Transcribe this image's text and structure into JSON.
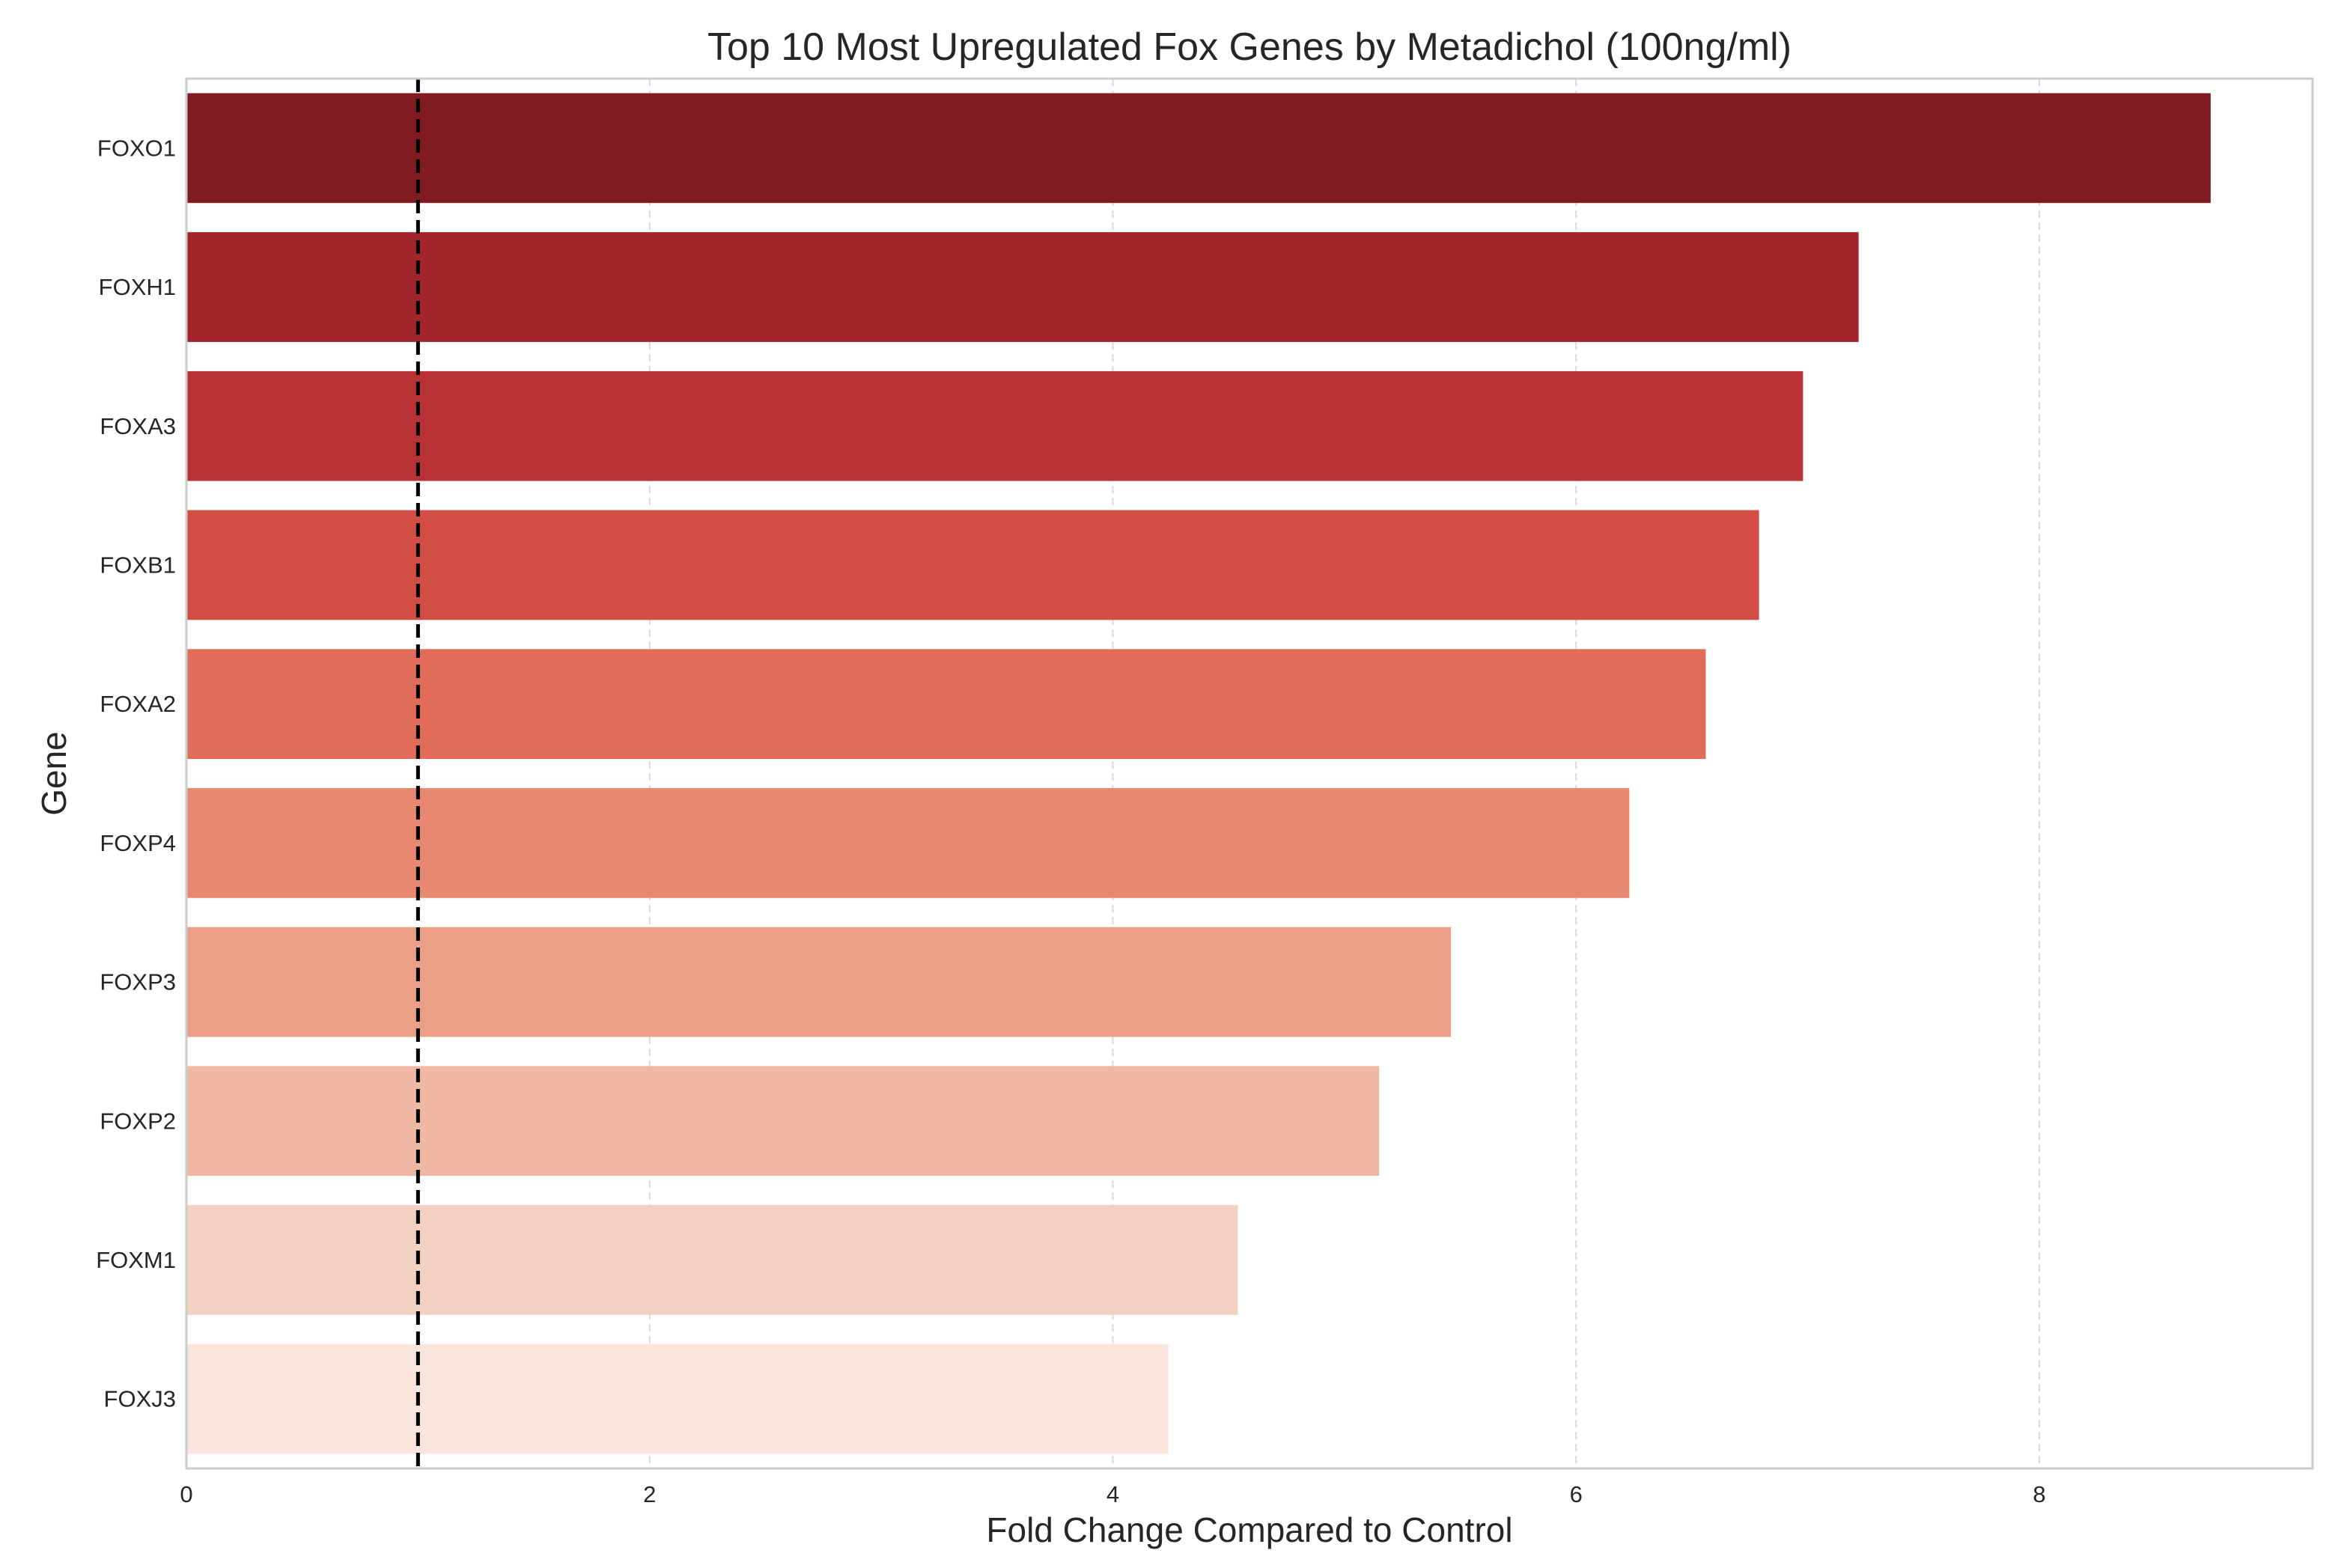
{
  "chart_data": {
    "type": "bar",
    "orientation": "horizontal",
    "title": "Top 10 Most Upregulated Fox Genes by Metadichol (100ng/ml)",
    "xlabel": "Fold Change Compared to Control",
    "ylabel": "Gene",
    "categories": [
      "FOXO1",
      "FOXH1",
      "FOXA3",
      "FOXB1",
      "FOXA2",
      "FOXP4",
      "FOXP3",
      "FOXP2",
      "FOXM1",
      "FOXJ3"
    ],
    "values": [
      8.74,
      7.22,
      6.98,
      6.79,
      6.56,
      6.23,
      5.46,
      5.15,
      4.54,
      4.24
    ],
    "colors": [
      "#811b22",
      "#a1252b",
      "#b93235",
      "#d24d44",
      "#e16c5a",
      "#e98871",
      "#eb9f87",
      "#f0b7a3",
      "#f3d1c2",
      "#f9e5dc"
    ],
    "xlim": [
      0,
      9.18
    ],
    "xticks": [
      0,
      2,
      4,
      6,
      8
    ],
    "reference_line": {
      "x": 1,
      "style": "dashed",
      "color": "#000000"
    },
    "grid": {
      "x": true,
      "y": false,
      "style": "dashed"
    },
    "legend": "none"
  }
}
